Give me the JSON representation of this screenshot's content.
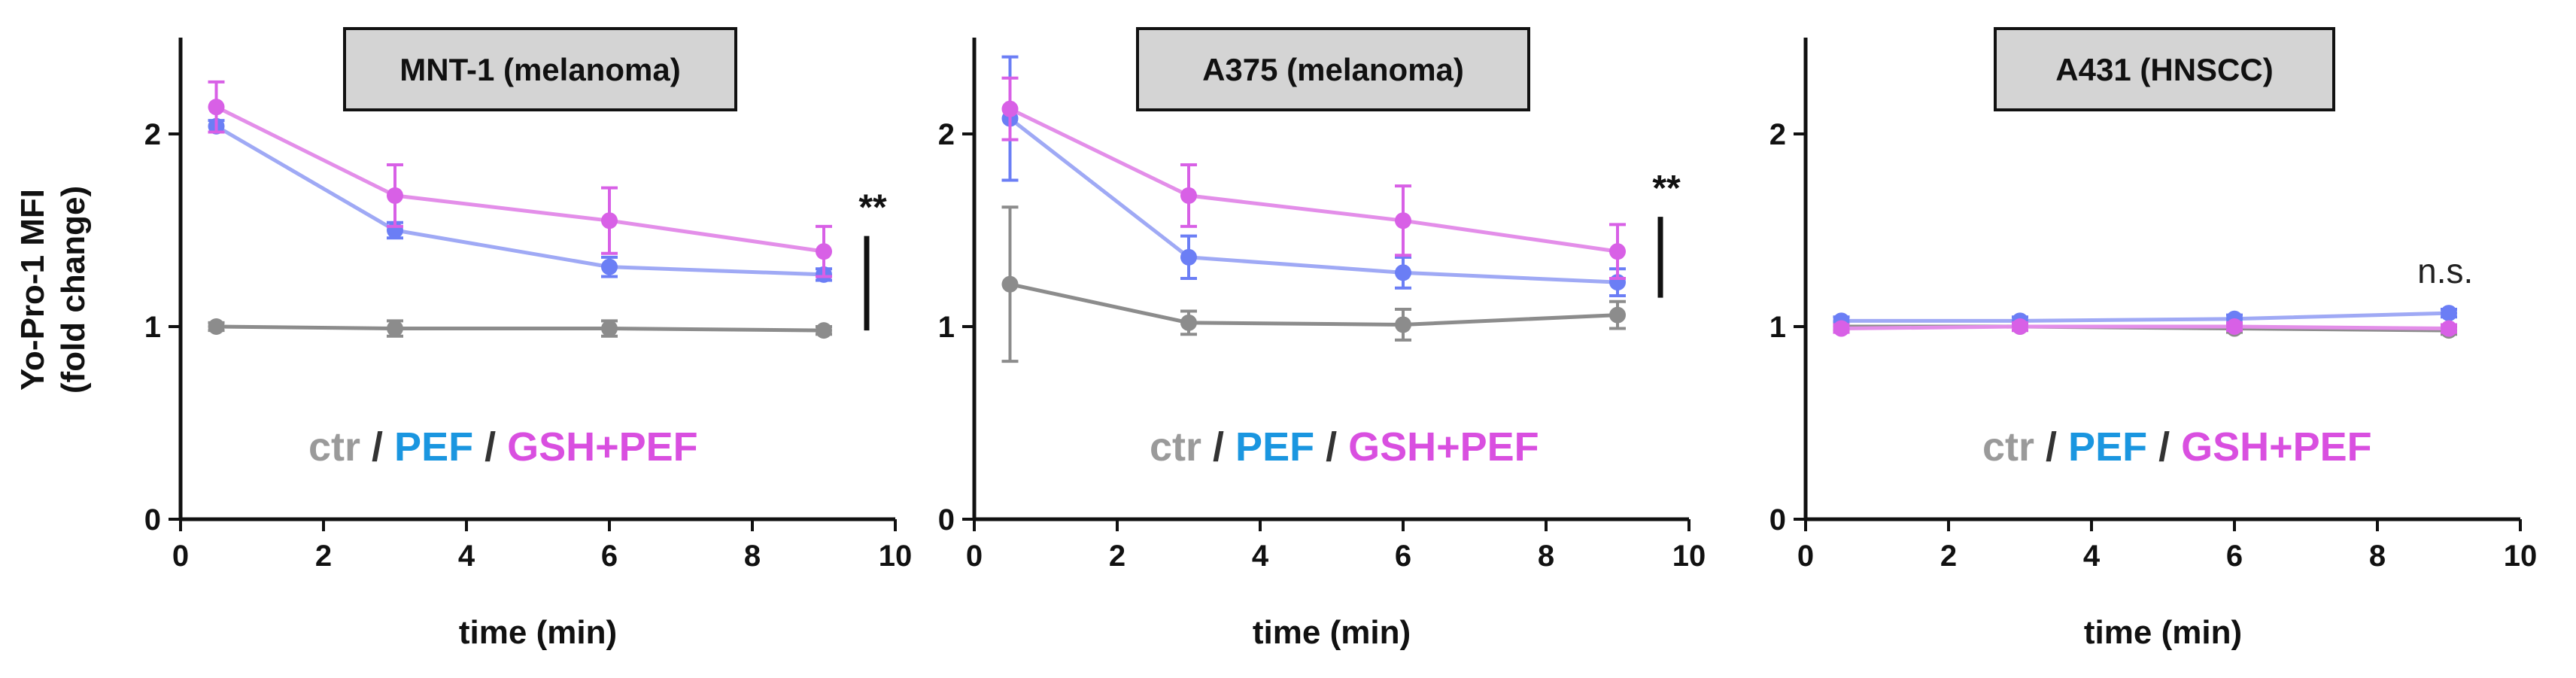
{
  "figure": {
    "ylabel_line1": "Yo-Pro-1 MFI",
    "ylabel_line2": "(fold change)",
    "legend": [
      {
        "text": "ctr",
        "color": "#9a9a9a"
      },
      {
        "text": " / ",
        "color": "#333333"
      },
      {
        "text": "PEF",
        "color": "#1a96e0"
      },
      {
        "text": " / ",
        "color": "#333333"
      },
      {
        "text": "GSH+PEF",
        "color": "#d94fe0"
      }
    ]
  },
  "colors": {
    "ctr": "#8c8c8c",
    "PEF": "#6b7ef5",
    "GSH+PEF": "#d860e6",
    "PEF_line": "#9fa9f5",
    "GSH+PEF_line": "#e38ee9"
  },
  "chart_data": [
    {
      "type": "line",
      "title": "MNT-1 (melanoma)",
      "xlabel": "time (min)",
      "ylabel": "Yo-Pro-1 MFI (fold change)",
      "xlim": [
        0,
        10
      ],
      "ylim": [
        0,
        2.5
      ],
      "xticks": [
        "0",
        "2",
        "4",
        "6",
        "8",
        "10"
      ],
      "yticks": [
        "0",
        "1",
        "2"
      ],
      "x": [
        0.5,
        3,
        6,
        9
      ],
      "series": [
        {
          "key": "ctr",
          "values": [
            1.0,
            0.99,
            0.99,
            0.98
          ],
          "err": [
            0.02,
            0.04,
            0.04,
            0.02
          ]
        },
        {
          "key": "PEF",
          "values": [
            2.04,
            1.5,
            1.31,
            1.27
          ],
          "err": [
            0.03,
            0.04,
            0.05,
            0.03
          ]
        },
        {
          "key": "GSH+PEF",
          "values": [
            2.14,
            1.68,
            1.55,
            1.39
          ],
          "err": [
            0.13,
            0.16,
            0.17,
            0.13
          ]
        }
      ],
      "annotation": "**",
      "annotation_style": "stars"
    },
    {
      "type": "line",
      "title": "A375 (melanoma)",
      "xlabel": "time (min)",
      "ylabel": "",
      "xlim": [
        0,
        10
      ],
      "ylim": [
        0,
        2.5
      ],
      "xticks": [
        "0",
        "2",
        "4",
        "6",
        "8",
        "10"
      ],
      "yticks": [
        "0",
        "1",
        "2"
      ],
      "x": [
        0.5,
        3,
        6,
        9
      ],
      "series": [
        {
          "key": "ctr",
          "values": [
            1.22,
            1.02,
            1.01,
            1.06
          ],
          "err": [
            0.4,
            0.06,
            0.08,
            0.07
          ]
        },
        {
          "key": "PEF",
          "values": [
            2.08,
            1.36,
            1.28,
            1.23
          ],
          "err": [
            0.32,
            0.11,
            0.08,
            0.07
          ]
        },
        {
          "key": "GSH+PEF",
          "values": [
            2.13,
            1.68,
            1.55,
            1.39
          ],
          "err": [
            0.16,
            0.16,
            0.18,
            0.14
          ]
        }
      ],
      "annotation": "**",
      "annotation_style": "stars"
    },
    {
      "type": "line",
      "title": "A431 (HNSCC)",
      "xlabel": "time (min)",
      "ylabel": "",
      "xlim": [
        0,
        10
      ],
      "ylim": [
        0,
        2.5
      ],
      "xticks": [
        "0",
        "2",
        "4",
        "6",
        "8",
        "10"
      ],
      "yticks": [
        "0",
        "1",
        "2"
      ],
      "x": [
        0.5,
        3,
        6,
        9
      ],
      "series": [
        {
          "key": "ctr",
          "values": [
            1.0,
            1.0,
            0.99,
            0.98
          ],
          "err": [
            0.02,
            0.02,
            0.02,
            0.02
          ]
        },
        {
          "key": "PEF",
          "values": [
            1.03,
            1.03,
            1.04,
            1.07
          ],
          "err": [
            0.02,
            0.02,
            0.02,
            0.02
          ]
        },
        {
          "key": "GSH+PEF",
          "values": [
            0.99,
            1.0,
            1.0,
            0.99
          ],
          "err": [
            0.02,
            0.02,
            0.02,
            0.02
          ]
        }
      ],
      "annotation": "n.s.",
      "annotation_style": "ns"
    }
  ]
}
